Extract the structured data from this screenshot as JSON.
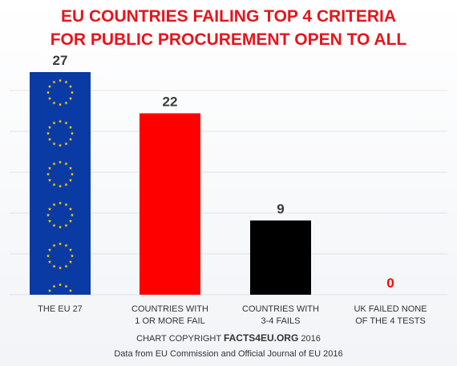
{
  "title_line1": "EU COUNTRIES FAILING TOP 4 CRITERIA",
  "title_line2": "FOR PUBLIC PROCUREMENT OPEN TO ALL",
  "chart_data": {
    "type": "bar",
    "categories": [
      [
        "THE EU 27"
      ],
      [
        "COUNTRIES WITH",
        "1 OR MORE FAIL"
      ],
      [
        "COUNTRIES WITH",
        "3-4 FAILS"
      ],
      [
        "UK FAILED NONE",
        "OF THE 4 TESTS"
      ]
    ],
    "values": [
      27,
      22,
      9,
      0
    ],
    "value_labels": [
      "27",
      "22",
      "9",
      "0"
    ],
    "bar_colors": [
      "#0a3aa3",
      "#ff0000",
      "#000000",
      "#ff0000"
    ],
    "value_label_colors": [
      "#3a3a3a",
      "#3a3a3a",
      "#3a3a3a",
      "#ff0000"
    ],
    "bar_styles": [
      "eu-flag",
      "solid",
      "solid",
      "solid"
    ],
    "ylim": [
      0,
      30
    ],
    "grid": true,
    "title": "EU COUNTRIES FAILING TOP 4 CRITERIA FOR PUBLIC PROCUREMENT OPEN TO ALL",
    "xlabel": "",
    "ylabel": ""
  },
  "footer": {
    "copyright_prefix": "CHART COPYRIGHT ",
    "copyright_brand": "FACTS4EU.ORG",
    "copyright_year": " 2016",
    "source": "Data from EU Commission and Official Journal of EU 2016"
  },
  "colors": {
    "title": "#e8141b",
    "eu_blue": "#0a3aa3",
    "eu_star": "#ffcc00",
    "grid": "#dfe3ea"
  }
}
